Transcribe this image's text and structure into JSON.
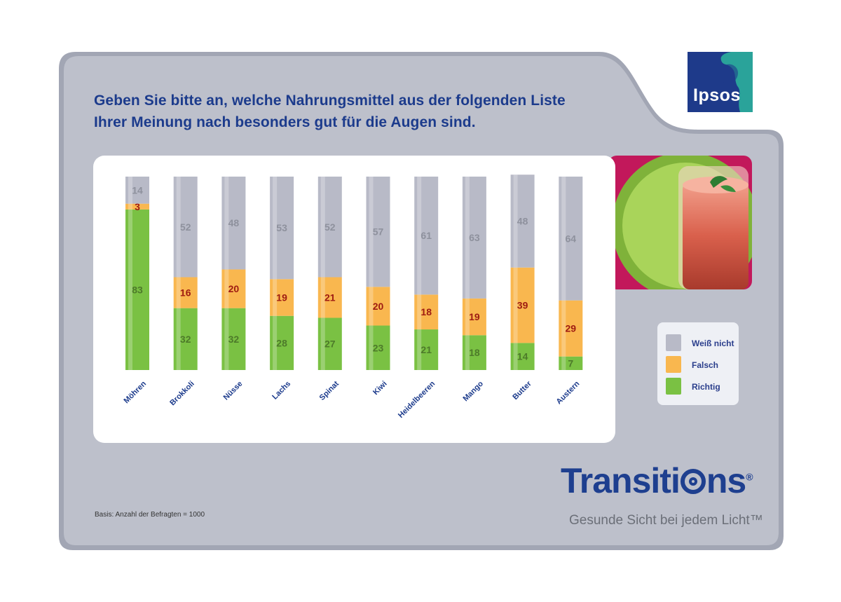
{
  "title_line1": "Geben Sie bitte an, welche Nahrungsmittel aus der folgenden Liste",
  "title_line2": "Ihrer Meinung nach besonders gut für die Augen sind.",
  "ipsos_logo": "Ipsos",
  "brand": {
    "prefix": "Transiti",
    "suffix": "ns",
    "trademark": "®"
  },
  "tagline": "Gesunde Sicht bei jedem Licht™",
  "basis": "Basis: Anzahl der Befragten = 1000",
  "legend": [
    {
      "label": "Weiß nicht",
      "color": "#b8bac7"
    },
    {
      "label": "Falsch",
      "color": "#f9b74f"
    },
    {
      "label": "Richtig",
      "color": "#7ac143"
    }
  ],
  "chart_data": {
    "type": "bar",
    "stacked": true,
    "unit": "percent",
    "categories": [
      "Möhren",
      "Brokkoli",
      "Nüsse",
      "Lachs",
      "Spinat",
      "Kiwi",
      "Heidelbeeren",
      "Mango",
      "Butter",
      "Austern"
    ],
    "series": [
      {
        "name": "Richtig",
        "color": "#7ac143",
        "values": [
          83,
          32,
          32,
          28,
          27,
          23,
          21,
          18,
          14,
          7
        ]
      },
      {
        "name": "Falsch",
        "color": "#f9b74f",
        "values": [
          3,
          16,
          20,
          19,
          21,
          20,
          18,
          19,
          39,
          29
        ]
      },
      {
        "name": "Weiß nicht",
        "color": "#b8bac7",
        "values": [
          14,
          52,
          48,
          53,
          52,
          57,
          61,
          63,
          48,
          64
        ]
      }
    ],
    "ylim": [
      0,
      100
    ]
  }
}
